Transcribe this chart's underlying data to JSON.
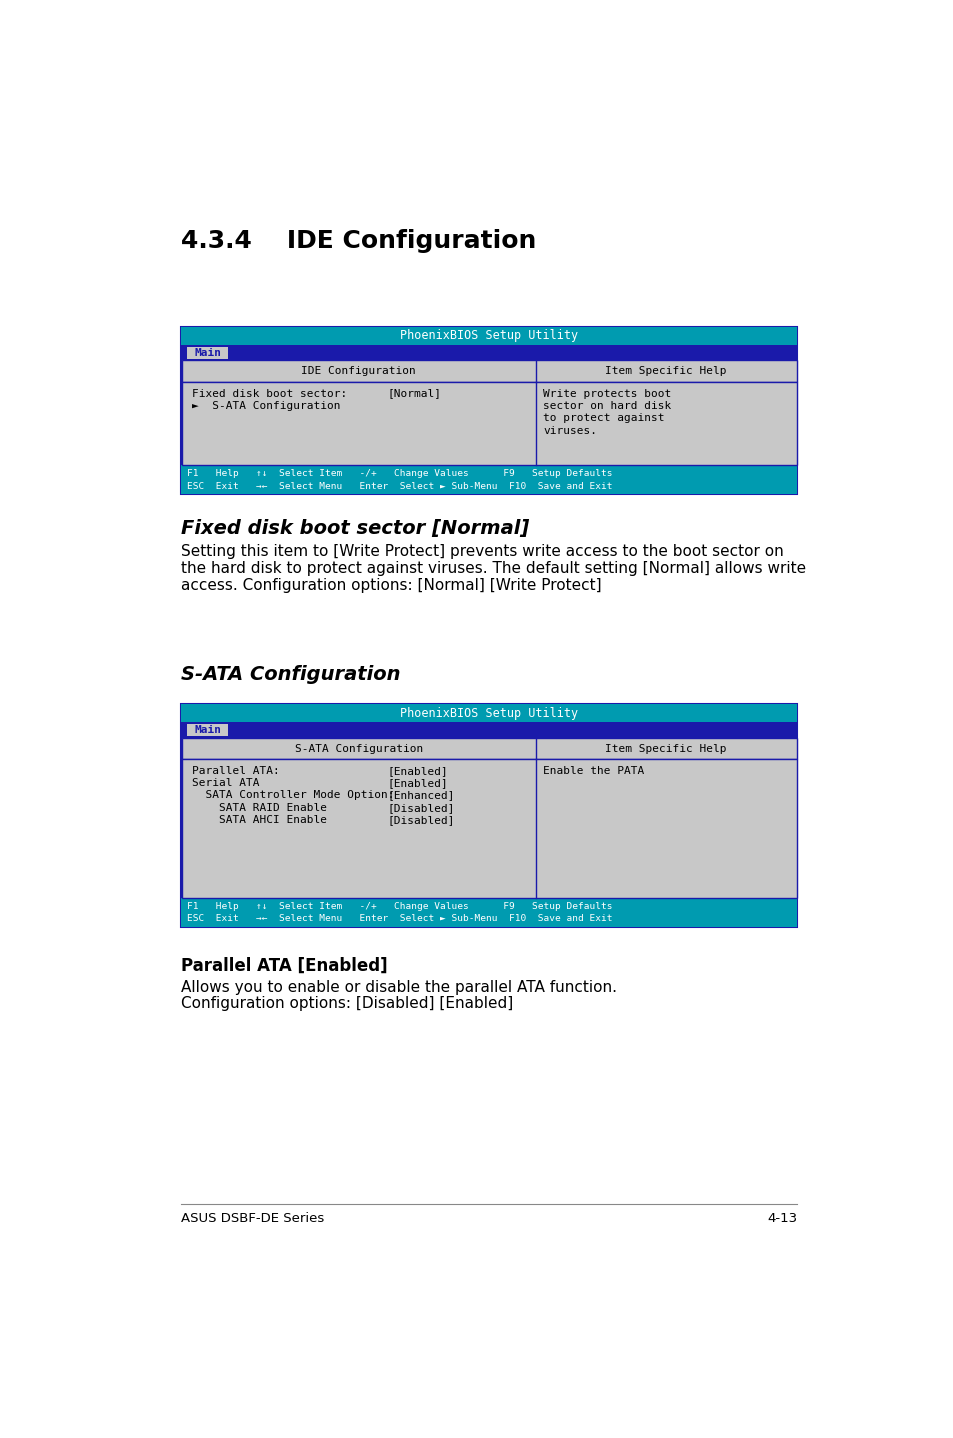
{
  "page_bg": "#ffffff",
  "section_title": "4.3.4    IDE Configuration",
  "bios1_title": "PhoenixBIOS Setup Utility",
  "bios1_tab": "Main",
  "bios1_col1_header": "IDE Configuration",
  "bios1_col2_header": "Item Specific Help",
  "bios1_rows": [
    {
      "label": "Fixed disk boot sector:",
      "value": "[Normal]"
    },
    {
      "label": "►  S-ATA Configuration",
      "value": ""
    }
  ],
  "bios1_help_lines": [
    "Write protects boot",
    "sector on hard disk",
    "to protect against",
    "viruses."
  ],
  "bios1_footer1": "F1   Help   ↑↓  Select Item   -/+   Change Values      F9   Setup Defaults",
  "bios1_footer2": "ESC  Exit   →←  Select Menu   Enter  Select ► Sub-Menu  F10  Save and Exit",
  "italic_title": "Fixed disk boot sector [Normal]",
  "body1_lines": [
    "Setting this item to [Write Protect] prevents write access to the boot sector on",
    "the hard disk to protect against viruses. The default setting [Normal] allows write",
    "access. Configuration options: [Normal] [Write Protect]"
  ],
  "italic_title2": "S-ATA Configuration",
  "bios2_title": "PhoenixBIOS Setup Utility",
  "bios2_tab": "Main",
  "bios2_col1_header": "S-ATA Configuration",
  "bios2_col2_header": "Item Specific Help",
  "bios2_rows": [
    {
      "label": "Parallel ATA:",
      "value": "[Enabled]"
    },
    {
      "label": "Serial ATA",
      "value": "[Enabled]"
    },
    {
      "label": "  SATA Controller Mode Option:",
      "value": "[Enhanced]"
    },
    {
      "label": "    SATA RAID Enable",
      "value": "[Disabled]"
    },
    {
      "label": "    SATA AHCI Enable",
      "value": "[Disabled]"
    }
  ],
  "bios2_help_lines": [
    "Enable the PATA"
  ],
  "bios2_footer1": "F1   Help   ↑↓  Select Item   -/+   Change Values      F9   Setup Defaults",
  "bios2_footer2": "ESC  Exit   →←  Select Menu   Enter  Select ► Sub-Menu  F10  Save and Exit",
  "bold_title3": "Parallel ATA [Enabled]",
  "body3_lines": [
    "Allows you to enable or disable the parallel ATA function.",
    "Configuration options: [Disabled] [Enabled]"
  ],
  "footer_left": "ASUS DSBF-DE Series",
  "footer_right": "4-13",
  "color_cyan": "#009bb0",
  "color_darkblue": "#1a1aaa",
  "color_lightgray": "#c8c8c8",
  "color_darkgray": "#888888",
  "color_white": "#ffffff",
  "color_black": "#000000",
  "color_tab_text_cyan": "#00ccee"
}
